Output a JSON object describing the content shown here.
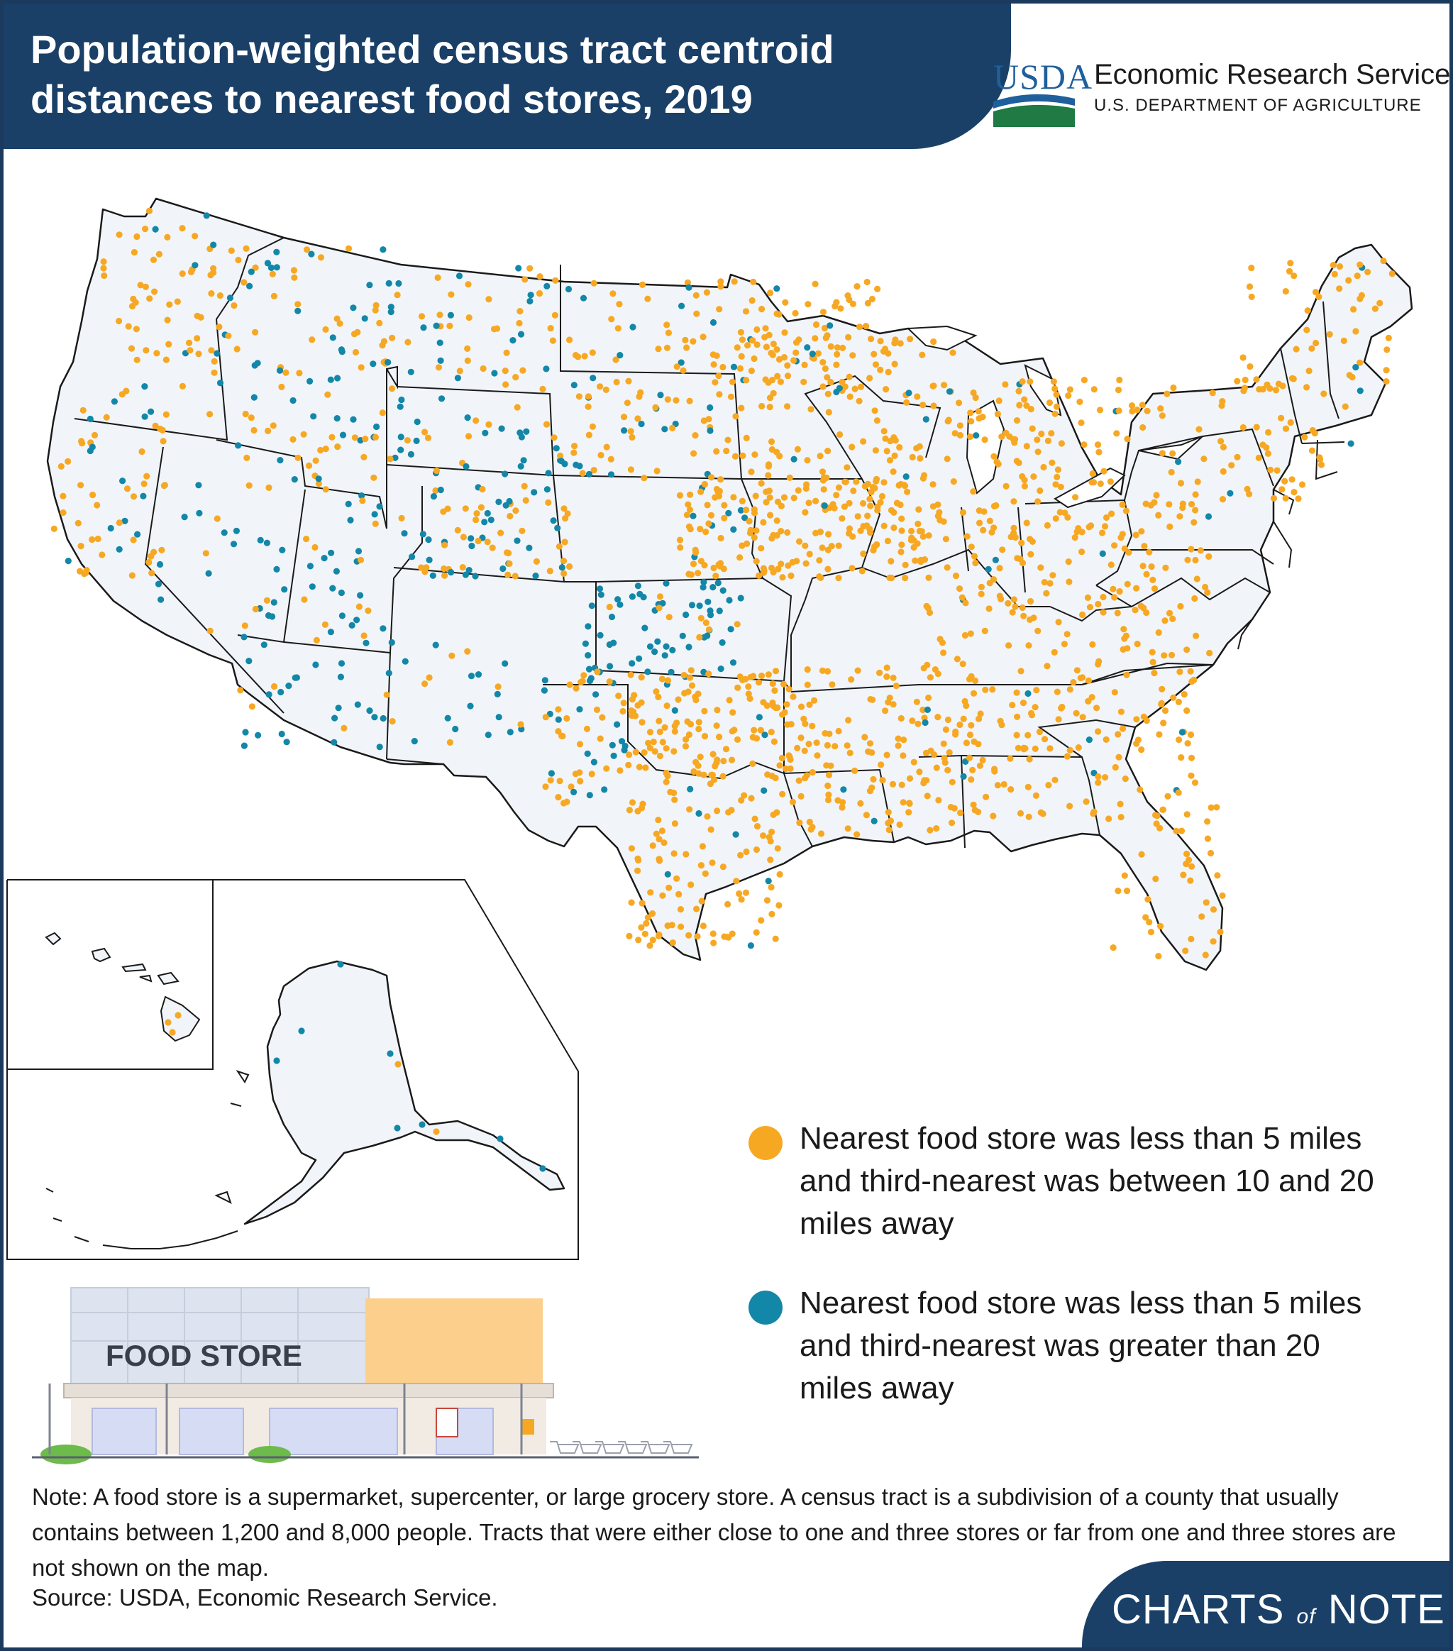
{
  "title": "Population-weighted census tract centroid distances to nearest food stores, 2019",
  "logo": {
    "usda": "USDA",
    "agency": "Economic Research Service",
    "department": "U.S. DEPARTMENT OF AGRICULTURE"
  },
  "colors": {
    "header": "#1a4068",
    "state_fill": "#f1f5f9",
    "border": "#1a1a1a",
    "orange": "#f7a823",
    "teal": "#1387a8"
  },
  "legend": [
    {
      "color": "#f7a823",
      "label": "Nearest food store was less than 5 miles and third-nearest was between 10 and 20 miles away"
    },
    {
      "color": "#1387a8",
      "label": "Nearest food store was less than 5 miles and third-nearest was greater than 20 miles away"
    }
  ],
  "store_sign": "FOOD STORE",
  "note": "Note: A food store is a supermarket, supercenter, or large grocery store. A census tract is a subdivision of a county that usually contains between 1,200 and 8,000 people. Tracts that were either close to one and three stores or far from one and three stores are not shown on the map.",
  "source": "Source: USDA, Economic Research Service.",
  "brand": {
    "part1": "CHARTS",
    "part2": "of",
    "part3": "NOTE"
  },
  "icons": [
    "usda-logo",
    "food-store-illustration",
    "shopping-cart-icon",
    "chart-pie-icon"
  ]
}
